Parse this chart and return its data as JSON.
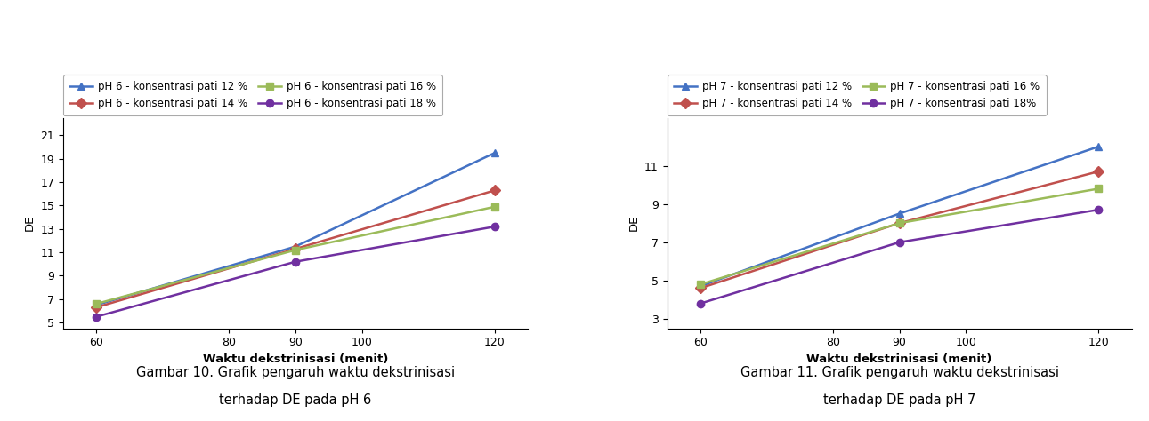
{
  "x": [
    60,
    90,
    120
  ],
  "ph6": {
    "series": [
      {
        "label": "pH 6 - konsentrasi pati 12 %",
        "color": "#4472C4",
        "marker": "^",
        "values": [
          6.5,
          11.5,
          19.5
        ]
      },
      {
        "label": "pH 6 - konsentrasi pati 14 %",
        "color": "#C0504D",
        "marker": "D",
        "values": [
          6.3,
          11.3,
          16.3
        ]
      },
      {
        "label": "pH 6 - konsentrasi pati 16 %",
        "color": "#9BBB59",
        "marker": "s",
        "values": [
          6.6,
          11.2,
          14.9
        ]
      },
      {
        "label": "pH 6 - konsentrasi pati 18 %",
        "color": "#7030A0",
        "marker": "o",
        "values": [
          5.5,
          10.2,
          13.2
        ]
      }
    ],
    "yticks": [
      5,
      7,
      9,
      11,
      13,
      15,
      17,
      19,
      21
    ],
    "ylim": [
      4.5,
      22.5
    ],
    "xlabel": "Waktu dekstrinisasi (menit)",
    "ylabel": "DE",
    "caption1": "Gambar 10. Grafik pengaruh waktu dekstrinisasi",
    "caption2": "terhadap DE pada pH 6"
  },
  "ph7": {
    "series": [
      {
        "label": "pH 7 - konsentrasi pati 12 %",
        "color": "#4472C4",
        "marker": "^",
        "values": [
          4.7,
          8.5,
          12.0
        ]
      },
      {
        "label": "pH 7 - konsentrasi pati 14 %",
        "color": "#C0504D",
        "marker": "D",
        "values": [
          4.6,
          8.0,
          10.7
        ]
      },
      {
        "label": "pH 7 - konsentrasi pati 16 %",
        "color": "#9BBB59",
        "marker": "s",
        "values": [
          4.8,
          8.0,
          9.8
        ]
      },
      {
        "label": "pH 7 - konsentrasi pati 18%",
        "color": "#7030A0",
        "marker": "o",
        "values": [
          3.8,
          7.0,
          8.7
        ]
      }
    ],
    "yticks": [
      3,
      5,
      7,
      9,
      11
    ],
    "ylim": [
      2.5,
      13.5
    ],
    "xlabel": "Waktu dekstrinisasi (menit)",
    "ylabel": "DE",
    "caption1": "Gambar 11. Grafik pengaruh waktu dekstrinisasi",
    "caption2": "terhadap DE pada pH 7"
  },
  "xticks": [
    60,
    80,
    90,
    100,
    120
  ],
  "xlim": [
    55,
    125
  ],
  "background_color": "#FFFFFF",
  "figsize": [
    12.91,
    4.74
  ],
  "dpi": 100
}
